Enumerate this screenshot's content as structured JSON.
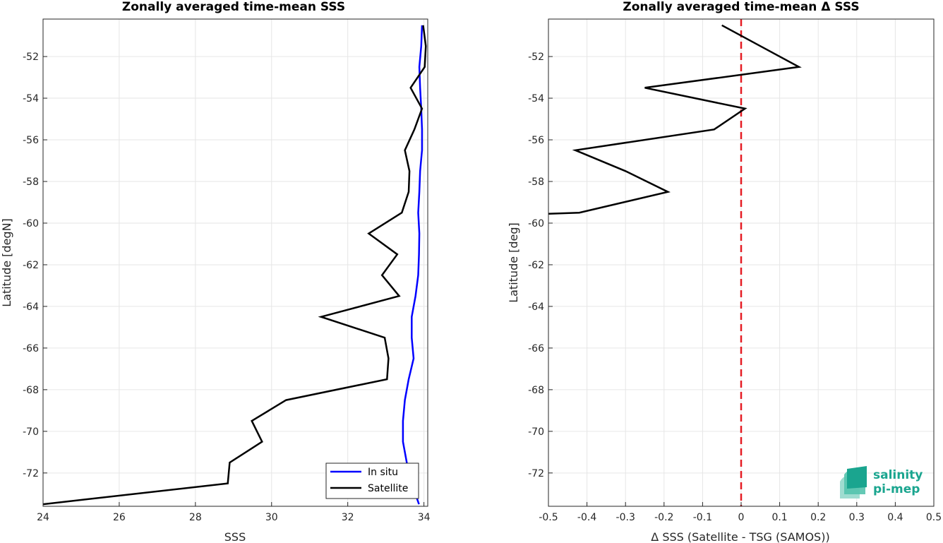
{
  "chart_data": [
    {
      "type": "line",
      "title": "Zonally averaged time-mean SSS",
      "xlabel": "SSS",
      "ylabel": "Latitude [degN]",
      "xlim": [
        24,
        34.1
      ],
      "ylim": [
        -73.6,
        -50.2
      ],
      "xticks": [
        24,
        26,
        28,
        30,
        32,
        34
      ],
      "yticks": [
        -72,
        -70,
        -68,
        -66,
        -64,
        -62,
        -60,
        -58,
        -56,
        -54,
        -52
      ],
      "grid": true,
      "legend": "bottom-right",
      "legend_entries": [
        "In situ",
        "Satellite"
      ],
      "series": [
        {
          "name": "In situ",
          "color": "#0000ff",
          "points": [
            [
              33.95,
              -50.5
            ],
            [
              33.93,
              -51.5
            ],
            [
              33.88,
              -52.5
            ],
            [
              33.9,
              -53.5
            ],
            [
              33.93,
              -54.5
            ],
            [
              33.95,
              -55.5
            ],
            [
              33.95,
              -56.5
            ],
            [
              33.9,
              -57.5
            ],
            [
              33.88,
              -58.5
            ],
            [
              33.85,
              -59.5
            ],
            [
              33.88,
              -60.5
            ],
            [
              33.87,
              -61.5
            ],
            [
              33.85,
              -62.5
            ],
            [
              33.78,
              -63.5
            ],
            [
              33.68,
              -64.5
            ],
            [
              33.68,
              -65.5
            ],
            [
              33.73,
              -66.5
            ],
            [
              33.6,
              -67.5
            ],
            [
              33.5,
              -68.5
            ],
            [
              33.45,
              -69.5
            ],
            [
              33.45,
              -70.5
            ],
            [
              33.55,
              -71.5
            ],
            [
              33.68,
              -72.5
            ],
            [
              33.87,
              -73.5
            ]
          ]
        },
        {
          "name": "Satellite",
          "color": "#000000",
          "points": [
            [
              33.98,
              -50.5
            ],
            [
              34.05,
              -51.5
            ],
            [
              34.02,
              -52.5
            ],
            [
              33.65,
              -53.5
            ],
            [
              33.95,
              -54.5
            ],
            [
              33.75,
              -55.5
            ],
            [
              33.5,
              -56.5
            ],
            [
              33.62,
              -57.5
            ],
            [
              33.6,
              -58.5
            ],
            [
              33.42,
              -59.5
            ],
            [
              32.55,
              -60.5
            ],
            [
              33.3,
              -61.5
            ],
            [
              32.9,
              -62.5
            ],
            [
              33.35,
              -63.5
            ],
            [
              31.3,
              -64.5
            ],
            [
              32.97,
              -65.5
            ],
            [
              33.07,
              -66.5
            ],
            [
              33.03,
              -67.5
            ],
            [
              30.38,
              -68.5
            ],
            [
              29.48,
              -69.5
            ],
            [
              29.75,
              -70.5
            ],
            [
              28.9,
              -71.5
            ],
            [
              28.85,
              -72.5
            ],
            [
              24.0,
              -73.5
            ]
          ]
        }
      ]
    },
    {
      "type": "line",
      "title": "Zonally averaged time-mean Δ SSS",
      "xlabel": "Δ SSS (Satellite - TSG (SAMOS))",
      "ylabel": "Latitude [deg]",
      "xlim": [
        -0.5,
        0.5
      ],
      "ylim": [
        -73.6,
        -50.2
      ],
      "xticks": [
        -0.5,
        -0.4,
        -0.3,
        -0.2,
        -0.1,
        0,
        0.1,
        0.2,
        0.3,
        0.4,
        0.5
      ],
      "yticks": [
        -72,
        -70,
        -68,
        -66,
        -64,
        -62,
        -60,
        -58,
        -56,
        -54,
        -52
      ],
      "grid": true,
      "reference_line": {
        "x": 0,
        "color": "#e51c23",
        "style": "dashed"
      },
      "series": [
        {
          "color": "#000000",
          "points": [
            [
              -0.05,
              -50.5
            ],
            [
              0.05,
              -51.5
            ],
            [
              0.15,
              -52.5
            ],
            [
              -0.25,
              -53.5
            ],
            [
              0.01,
              -54.5
            ],
            [
              -0.07,
              -55.5
            ],
            [
              -0.43,
              -56.5
            ],
            [
              -0.3,
              -57.5
            ],
            [
              -0.19,
              -58.5
            ],
            [
              -0.42,
              -59.5
            ],
            [
              -0.5,
              -59.55
            ]
          ]
        }
      ]
    }
  ],
  "logo": {
    "line1": "salinity",
    "line2": "pi-mep",
    "color": "#1aa58f"
  }
}
